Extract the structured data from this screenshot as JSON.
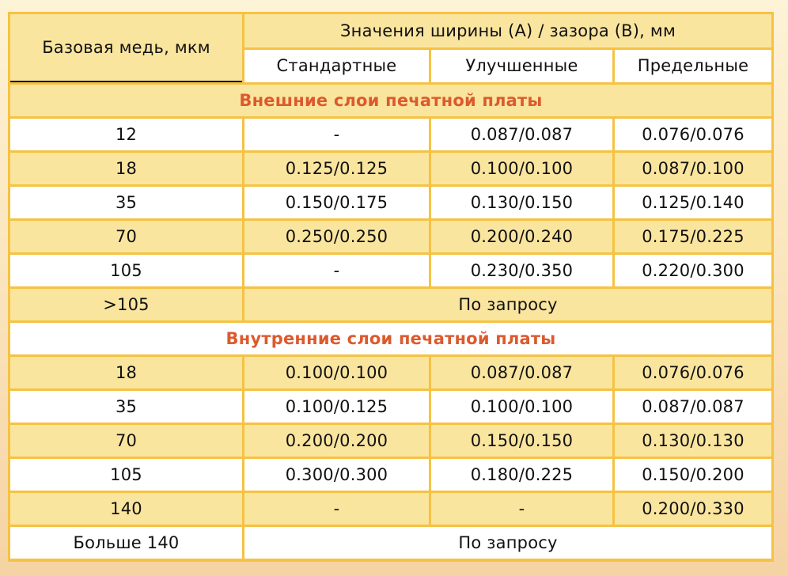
{
  "table": {
    "header": {
      "base_copper": "Базовая медь, мкм",
      "values_title": "Значения ширины (A) / зазора (B), мм",
      "columns": [
        "Стандартные",
        "Улучшенные",
        "Предельные"
      ]
    },
    "sections": [
      {
        "title": "Внешние слои печатной платы",
        "rows": [
          {
            "copper": "12",
            "values": [
              "-",
              "0.087/0.087",
              "0.076/0.076"
            ]
          },
          {
            "copper": "18",
            "values": [
              "0.125/0.125",
              "0.100/0.100",
              "0.087/0.100"
            ]
          },
          {
            "copper": "35",
            "values": [
              "0.150/0.175",
              "0.130/0.150",
              "0.125/0.140"
            ]
          },
          {
            "copper": "70",
            "values": [
              "0.250/0.250",
              "0.200/0.240",
              "0.175/0.225"
            ]
          },
          {
            "copper": "105",
            "values": [
              "-",
              "0.230/0.350",
              "0.220/0.300"
            ]
          }
        ],
        "footer": {
          "copper": ">105",
          "value": "По запросу"
        }
      },
      {
        "title": "Внутренние слои печатной платы",
        "rows": [
          {
            "copper": "18",
            "values": [
              "0.100/0.100",
              "0.087/0.087",
              "0.076/0.076"
            ]
          },
          {
            "copper": "35",
            "values": [
              "0.100/0.125",
              "0.100/0.100",
              "0.087/0.087"
            ]
          },
          {
            "copper": "70",
            "values": [
              "0.200/0.200",
              "0.150/0.150",
              "0.130/0.130"
            ]
          },
          {
            "copper": "105",
            "values": [
              "0.300/0.300",
              "0.180/0.225",
              "0.150/0.200"
            ]
          },
          {
            "copper": "140",
            "values": [
              "-",
              "-",
              "0.200/0.330"
            ]
          }
        ],
        "footer": {
          "copper": "Больше 140",
          "value": "По запросу"
        }
      }
    ]
  },
  "colors": {
    "border": "#f5c243",
    "row_yellow": "#fae59f",
    "row_white": "#ffffff",
    "section_title": "#dc5a2e"
  }
}
